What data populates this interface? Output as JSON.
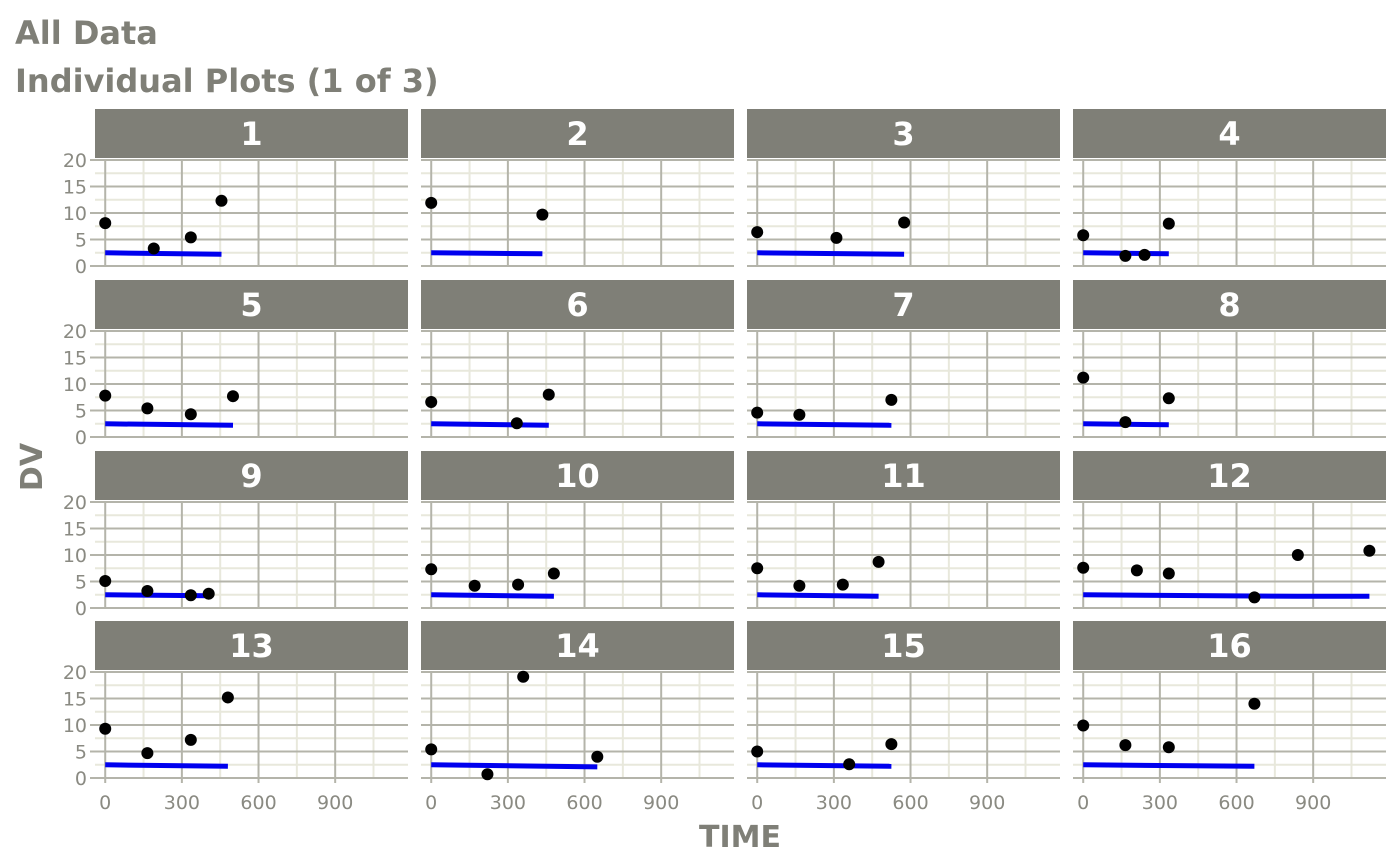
{
  "title": "All Data",
  "subtitle": "Individual Plots (1 of 3)",
  "colors": {
    "strip_bg": "#7f7f77",
    "strip_text": "#ffffff",
    "grid_major": "#b4b4aa",
    "grid_minor": "#e8e8dc",
    "axis_text": "#8a8a82",
    "title": "#7f7f77",
    "points": "#000000",
    "line": "#0000ee"
  },
  "chart_data": {
    "type": "scatter",
    "xlabel": "TIME",
    "ylabel": "DV",
    "xlim": [
      -40,
      1185
    ],
    "ylim": [
      0,
      20
    ],
    "x_ticks": [
      0,
      300,
      600,
      900
    ],
    "y_ticks": [
      0,
      5,
      10,
      15,
      20
    ],
    "x_tick_labels": [
      "0",
      "300",
      "600",
      "900"
    ],
    "y_tick_labels": [
      "0",
      "5",
      "10",
      "15",
      "20"
    ],
    "grid": true,
    "legend": "none",
    "series_description": [
      "observed points",
      "fitted line"
    ],
    "panels": [
      {
        "id": "1",
        "points": [
          [
            0,
            8.1
          ],
          [
            190,
            3.3
          ],
          [
            335,
            5.4
          ],
          [
            455,
            12.3
          ]
        ],
        "line": [
          [
            0,
            2.5
          ],
          [
            455,
            2.2
          ]
        ]
      },
      {
        "id": "2",
        "points": [
          [
            0,
            11.9
          ],
          [
            435,
            9.7
          ]
        ],
        "line": [
          [
            0,
            2.5
          ],
          [
            435,
            2.3
          ]
        ]
      },
      {
        "id": "3",
        "points": [
          [
            0,
            6.4
          ],
          [
            310,
            5.3
          ],
          [
            575,
            8.2
          ]
        ],
        "line": [
          [
            0,
            2.5
          ],
          [
            575,
            2.2
          ]
        ]
      },
      {
        "id": "4",
        "points": [
          [
            0,
            5.8
          ],
          [
            165,
            1.9
          ],
          [
            240,
            2.1
          ],
          [
            335,
            8.0
          ]
        ],
        "line": [
          [
            0,
            2.5
          ],
          [
            335,
            2.3
          ]
        ]
      },
      {
        "id": "5",
        "points": [
          [
            0,
            7.8
          ],
          [
            165,
            5.4
          ],
          [
            335,
            4.3
          ],
          [
            500,
            7.7
          ]
        ],
        "line": [
          [
            0,
            2.5
          ],
          [
            500,
            2.2
          ]
        ]
      },
      {
        "id": "6",
        "points": [
          [
            0,
            6.6
          ],
          [
            335,
            2.6
          ],
          [
            460,
            8.0
          ]
        ],
        "line": [
          [
            0,
            2.5
          ],
          [
            460,
            2.2
          ]
        ]
      },
      {
        "id": "7",
        "points": [
          [
            0,
            4.6
          ],
          [
            165,
            4.2
          ],
          [
            525,
            7.0
          ]
        ],
        "line": [
          [
            0,
            2.5
          ],
          [
            525,
            2.2
          ]
        ]
      },
      {
        "id": "8",
        "points": [
          [
            0,
            11.2
          ],
          [
            165,
            2.8
          ],
          [
            335,
            7.3
          ]
        ],
        "line": [
          [
            0,
            2.5
          ],
          [
            335,
            2.3
          ]
        ]
      },
      {
        "id": "9",
        "points": [
          [
            0,
            5.1
          ],
          [
            165,
            3.2
          ],
          [
            335,
            2.4
          ],
          [
            405,
            2.7
          ]
        ],
        "line": [
          [
            0,
            2.5
          ],
          [
            405,
            2.3
          ]
        ]
      },
      {
        "id": "10",
        "points": [
          [
            0,
            7.3
          ],
          [
            170,
            4.2
          ],
          [
            340,
            4.4
          ],
          [
            480,
            6.5
          ]
        ],
        "line": [
          [
            0,
            2.5
          ],
          [
            480,
            2.2
          ]
        ]
      },
      {
        "id": "11",
        "points": [
          [
            0,
            7.5
          ],
          [
            165,
            4.2
          ],
          [
            335,
            4.4
          ],
          [
            475,
            8.7
          ]
        ],
        "line": [
          [
            0,
            2.5
          ],
          [
            475,
            2.2
          ]
        ]
      },
      {
        "id": "12",
        "points": [
          [
            0,
            7.6
          ],
          [
            210,
            7.1
          ],
          [
            335,
            6.5
          ],
          [
            670,
            2.0
          ],
          [
            840,
            10.0
          ],
          [
            1120,
            10.8
          ]
        ],
        "line": [
          [
            0,
            2.5
          ],
          [
            840,
            2.2
          ],
          [
            1120,
            2.2
          ]
        ]
      },
      {
        "id": "13",
        "points": [
          [
            0,
            9.3
          ],
          [
            165,
            4.7
          ],
          [
            335,
            7.2
          ],
          [
            480,
            15.2
          ]
        ],
        "line": [
          [
            0,
            2.5
          ],
          [
            480,
            2.2
          ]
        ]
      },
      {
        "id": "14",
        "points": [
          [
            0,
            5.4
          ],
          [
            220,
            0.7
          ],
          [
            360,
            19.1
          ],
          [
            650,
            4.0
          ]
        ],
        "line": [
          [
            0,
            2.5
          ],
          [
            650,
            2.1
          ]
        ]
      },
      {
        "id": "15",
        "points": [
          [
            0,
            5.0
          ],
          [
            360,
            2.6
          ],
          [
            525,
            6.4
          ]
        ],
        "line": [
          [
            0,
            2.5
          ],
          [
            525,
            2.2
          ]
        ]
      },
      {
        "id": "16",
        "points": [
          [
            0,
            9.9
          ],
          [
            165,
            6.2
          ],
          [
            335,
            5.8
          ],
          [
            670,
            14.0
          ]
        ],
        "line": [
          [
            0,
            2.5
          ],
          [
            670,
            2.2
          ]
        ]
      }
    ]
  }
}
